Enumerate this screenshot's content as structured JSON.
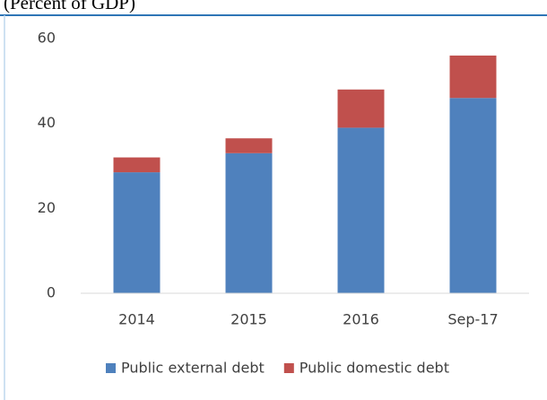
{
  "chart_data": {
    "type": "stacked_bar",
    "title": "(Percent of GDP)",
    "categories": [
      "2014",
      "2015",
      "2016",
      "Sep-17"
    ],
    "series": [
      {
        "name": "Public external debt",
        "color": "#4f81bd",
        "values": [
          28.5,
          33,
          39,
          46
        ]
      },
      {
        "name": "Public domestic debt",
        "color": "#c0504d",
        "values": [
          3.5,
          3.5,
          9,
          10
        ]
      }
    ],
    "ylim": [
      0,
      60
    ],
    "yticks": [
      0,
      20,
      40,
      60
    ],
    "grid": false,
    "legend": "bottom"
  }
}
